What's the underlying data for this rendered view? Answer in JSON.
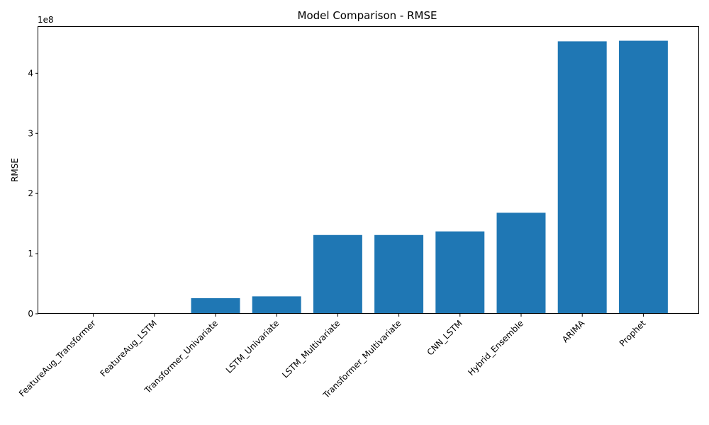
{
  "chart_data": {
    "type": "bar",
    "title": "Model Comparison - RMSE",
    "xlabel": "",
    "ylabel": "RMSE",
    "y_offset_label": "1e8",
    "y_ticks": [
      0,
      1,
      2,
      3,
      4
    ],
    "ylim": [
      0,
      4.77
    ],
    "categories": [
      "FeatureAug_Transformer",
      "FeatureAug_LSTM",
      "Transformer_Univariate",
      "LSTM_Univariate",
      "LSTM_Multivariate",
      "Transformer_Multivariate",
      "CNN_LSTM",
      "Hybrid_Ensemble",
      "ARIMA",
      "Prophet"
    ],
    "values": [
      0.0,
      0.0,
      0.26,
      0.29,
      1.31,
      1.31,
      1.37,
      1.68,
      4.53,
      4.54
    ],
    "value_unit_multiplier": 100000000,
    "bar_color": "#1f77b4",
    "grid": false,
    "legend": "none"
  }
}
